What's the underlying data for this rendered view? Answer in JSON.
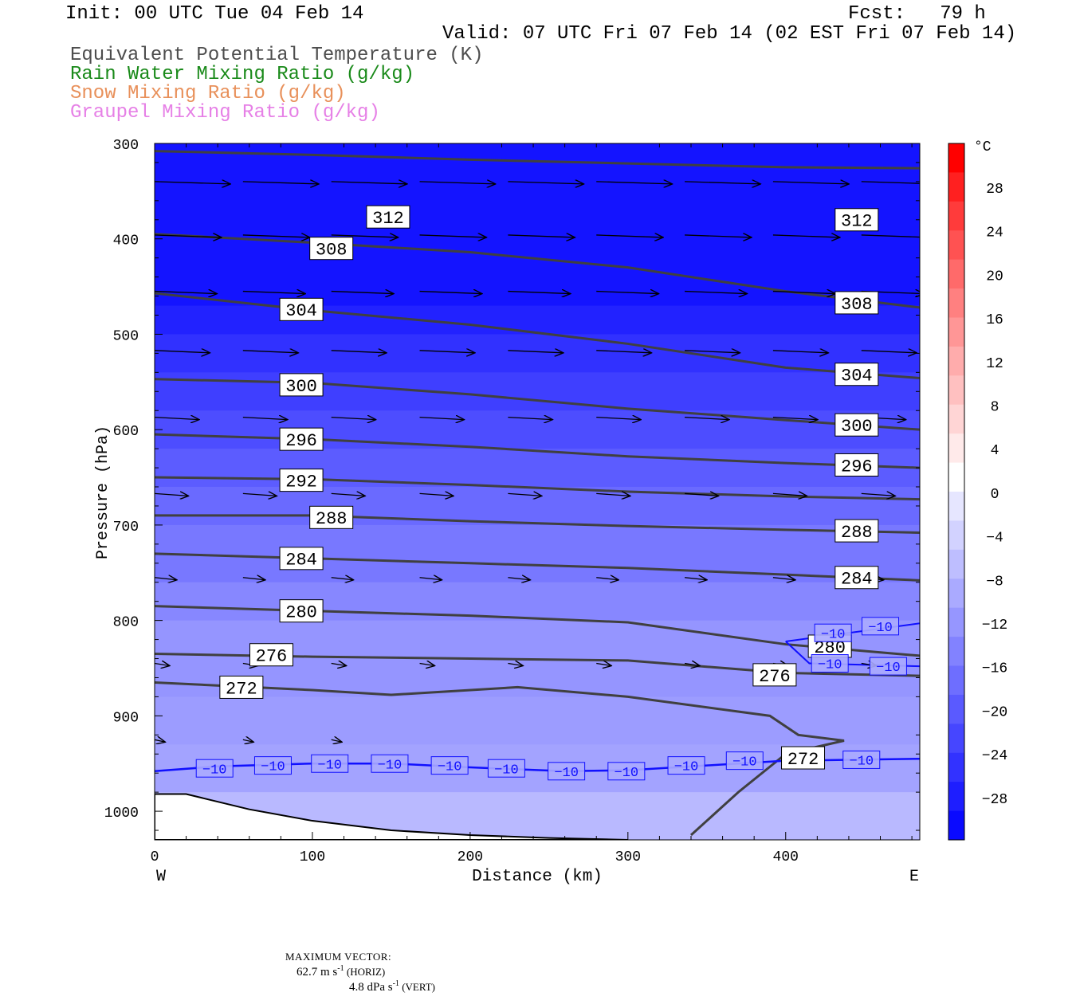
{
  "header": {
    "init": "Init: 00 UTC Tue 04 Feb 14",
    "fcst": "Fcst:   79 h",
    "valid": "Valid: 07 UTC Fri 07 Feb 14 (02 EST Fri 07 Feb 14)",
    "legend": [
      {
        "text": "Equivalent Potential Temperature (K)",
        "color": "#4d4d4d"
      },
      {
        "text": "Rain Water Mixing Ratio (g/kg)",
        "color": "#1a8a1a"
      },
      {
        "text": "Snow Mixing Ratio (g/kg)",
        "color": "#e8905a"
      },
      {
        "text": "Graupel Mixing Ratio (g/kg)",
        "color": "#e680e6"
      }
    ]
  },
  "chart_data": {
    "type": "cross-section",
    "xlabel": "Distance (km)",
    "ylabel": "Pressure (hPa)",
    "xlim": [
      0,
      485
    ],
    "ylim": [
      1030,
      300
    ],
    "x_ticks": [
      0,
      100,
      200,
      300,
      400
    ],
    "y_ticks": [
      300,
      400,
      500,
      600,
      700,
      800,
      900,
      1000
    ],
    "x_end_labels": {
      "left": "W",
      "right": "E"
    },
    "temperature_fill": {
      "bands": [
        {
          "pressure": [
            300,
            470
          ],
          "temp": -30
        },
        {
          "pressure": [
            470,
            500
          ],
          "temp": -28
        },
        {
          "pressure": [
            500,
            540
          ],
          "temp": -26
        },
        {
          "pressure": [
            540,
            580
          ],
          "temp": -24
        },
        {
          "pressure": [
            580,
            620
          ],
          "temp": -22
        },
        {
          "pressure": [
            620,
            660
          ],
          "temp": -20
        },
        {
          "pressure": [
            660,
            700
          ],
          "temp": -18
        },
        {
          "pressure": [
            700,
            760
          ],
          "temp": -16
        },
        {
          "pressure": [
            760,
            800
          ],
          "temp": -14
        },
        {
          "pressure": [
            800,
            880
          ],
          "temp": -12
        },
        {
          "pressure": [
            880,
            930
          ],
          "temp": -11
        },
        {
          "pressure": [
            930,
            980
          ],
          "temp": -10
        },
        {
          "pressure": [
            980,
            1030
          ],
          "temp": -7
        }
      ]
    },
    "theta_e": [
      {
        "level": 312,
        "points": [
          [
            0,
            308
          ],
          [
            100,
            312
          ],
          [
            200,
            317
          ],
          [
            300,
            321
          ],
          [
            400,
            325
          ],
          [
            485,
            326
          ]
        ],
        "labels": [
          [
            148,
            377
          ],
          [
            445,
            380
          ]
        ]
      },
      {
        "level": 308,
        "points": [
          [
            0,
            395
          ],
          [
            100,
            404
          ],
          [
            200,
            414
          ],
          [
            300,
            430
          ],
          [
            400,
            455
          ],
          [
            485,
            472
          ]
        ],
        "labels": [
          [
            112,
            410
          ],
          [
            445,
            467
          ]
        ]
      },
      {
        "level": 304,
        "points": [
          [
            0,
            457
          ],
          [
            100,
            475
          ],
          [
            200,
            490
          ],
          [
            300,
            510
          ],
          [
            400,
            535
          ],
          [
            485,
            546
          ]
        ],
        "labels": [
          [
            93,
            474
          ],
          [
            445,
            542
          ]
        ]
      },
      {
        "level": 300,
        "points": [
          [
            0,
            547
          ],
          [
            100,
            551
          ],
          [
            200,
            563
          ],
          [
            300,
            578
          ],
          [
            400,
            590
          ],
          [
            485,
            600
          ]
        ],
        "labels": [
          [
            93,
            553
          ],
          [
            445,
            595
          ]
        ]
      },
      {
        "level": 296,
        "points": [
          [
            0,
            605
          ],
          [
            100,
            610
          ],
          [
            200,
            618
          ],
          [
            300,
            628
          ],
          [
            400,
            635
          ],
          [
            485,
            640
          ]
        ],
        "labels": [
          [
            93,
            610
          ],
          [
            445,
            637
          ]
        ]
      },
      {
        "level": 292,
        "points": [
          [
            0,
            650
          ],
          [
            100,
            652
          ],
          [
            200,
            658
          ],
          [
            300,
            665
          ],
          [
            400,
            670
          ],
          [
            485,
            673
          ]
        ],
        "labels": [
          [
            93,
            653
          ],
          []
        ]
      },
      {
        "level": 288,
        "points": [
          [
            0,
            690
          ],
          [
            100,
            690
          ],
          [
            200,
            696
          ],
          [
            300,
            701
          ],
          [
            400,
            705
          ],
          [
            485,
            708
          ]
        ],
        "labels": [
          [
            112,
            692
          ],
          [
            445,
            706
          ]
        ]
      },
      {
        "level": 284,
        "points": [
          [
            0,
            730
          ],
          [
            100,
            735
          ],
          [
            200,
            740
          ],
          [
            300,
            745
          ],
          [
            400,
            752
          ],
          [
            485,
            758
          ]
        ],
        "labels": [
          [
            93,
            735
          ],
          [
            445,
            755
          ]
        ]
      },
      {
        "level": 280,
        "points": [
          [
            0,
            785
          ],
          [
            100,
            790
          ],
          [
            200,
            795
          ],
          [
            300,
            802
          ],
          [
            400,
            825
          ],
          [
            485,
            837
          ]
        ],
        "labels": [
          [
            93,
            790
          ],
          [
            428,
            827
          ]
        ]
      },
      {
        "level": 276,
        "points": [
          [
            0,
            835
          ],
          [
            100,
            838
          ],
          [
            200,
            840
          ],
          [
            300,
            842
          ],
          [
            400,
            855
          ],
          [
            485,
            858
          ]
        ],
        "labels": [
          [
            74,
            836
          ],
          [
            393,
            857
          ]
        ]
      },
      {
        "level": 272,
        "points": [
          [
            0,
            865
          ],
          [
            100,
            873
          ],
          [
            150,
            878
          ],
          [
            230,
            870
          ],
          [
            300,
            880
          ],
          [
            390,
            900
          ],
          [
            408,
            920
          ],
          [
            437,
            926
          ],
          [
            400,
            940
          ],
          [
            370,
            980
          ],
          [
            340,
            1025
          ]
        ],
        "labels": [
          [
            55,
            870
          ],
          [
            411,
            944
          ]
        ]
      }
    ],
    "isotherm_minus10": {
      "level": -10,
      "points": [
        [
          0,
          958
        ],
        [
          40,
          953
        ],
        [
          100,
          950
        ],
        [
          150,
          950
        ],
        [
          200,
          954
        ],
        [
          260,
          958
        ],
        [
          300,
          957
        ],
        [
          350,
          952
        ],
        [
          400,
          947
        ],
        [
          485,
          945
        ]
      ],
      "labels": [
        [
          38,
          955
        ],
        [
          75,
          952
        ],
        [
          111,
          950
        ],
        [
          149,
          950
        ],
        [
          187,
          952
        ],
        [
          223,
          955
        ],
        [
          261,
          958
        ],
        [
          299,
          958
        ],
        [
          337,
          952
        ],
        [
          374,
          947
        ],
        [
          448,
          946
        ]
      ]
    },
    "isotherm_upper": {
      "labels": [
        [
          430,
          813
        ],
        [
          460,
          806
        ],
        [
          428,
          845
        ],
        [
          465,
          848
        ]
      ]
    },
    "vectors": {
      "max_horiz": "62.7",
      "max_vert": "4.8",
      "rows": [
        {
          "p": 340,
          "xs": [
            0,
            56,
            112,
            168,
            224,
            280,
            336,
            392,
            448
          ],
          "len": 0.85
        },
        {
          "p": 396,
          "xs": [
            0,
            56,
            112,
            168,
            224,
            280,
            336,
            392,
            448
          ],
          "len": 0.75
        },
        {
          "p": 455,
          "xs": [
            0,
            56,
            112,
            168,
            224,
            280,
            336,
            392,
            448
          ],
          "len": 0.7
        },
        {
          "p": 517,
          "xs": [
            0,
            56,
            112,
            168,
            224,
            280,
            336,
            392,
            448
          ],
          "len": 0.62
        },
        {
          "p": 587,
          "xs": [
            0,
            56,
            112,
            168,
            224,
            280,
            336,
            392,
            448
          ],
          "len": 0.5
        },
        {
          "p": 667,
          "xs": [
            0,
            56,
            112,
            168,
            224,
            280,
            336,
            392,
            448
          ],
          "len": 0.38
        },
        {
          "p": 755,
          "xs": [
            0,
            56,
            112,
            168,
            224,
            280,
            336,
            392,
            448
          ],
          "len": 0.25
        },
        {
          "p": 845,
          "xs": [
            0,
            56,
            112,
            168,
            224,
            280,
            336,
            392,
            448
          ],
          "len": 0.17
        },
        {
          "p": 925,
          "xs": [
            0,
            56,
            112
          ],
          "len": 0.12
        }
      ]
    },
    "terrain": {
      "points": [
        [
          0,
          982
        ],
        [
          20,
          982
        ],
        [
          60,
          998
        ],
        [
          100,
          1010
        ],
        [
          150,
          1020
        ],
        [
          200,
          1025
        ],
        [
          250,
          1028
        ],
        [
          300,
          1030
        ]
      ]
    },
    "colorbar": {
      "unit": "°C",
      "labels": [
        "28",
        "24",
        "20",
        "16",
        "12",
        "8",
        "4",
        "0",
        "−4",
        "−8",
        "−12",
        "−16",
        "−20",
        "−24",
        "−28"
      ],
      "colors": [
        "#ff0000",
        "#ff2020",
        "#ff3b3b",
        "#ff5252",
        "#ff6a6a",
        "#ff8080",
        "#ff9696",
        "#ffacac",
        "#ffc0c0",
        "#ffd5d5",
        "#ffeaea",
        "#ffffff",
        "#e6e6ff",
        "#d2d2ff",
        "#bebeff",
        "#aaaaff",
        "#9696ff",
        "#8282ff",
        "#6e6eff",
        "#5a5aff",
        "#4646ff",
        "#3232ff",
        "#1e1eff",
        "#0a0aff"
      ]
    }
  },
  "footer": {
    "max_vector_label": "MAXIMUM VECTOR:",
    "horiz_text": "62.7 m s",
    "horiz_sup": "-1",
    "horiz_unit": " (HORIZ)",
    "vert_text": "4.8 dPa s",
    "vert_sup": "-1",
    "vert_unit": " (VERT)"
  }
}
